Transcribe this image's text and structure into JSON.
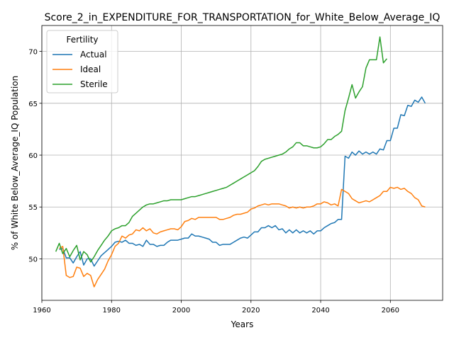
{
  "chart_data": {
    "type": "line",
    "title": "Score_2_in_EXPENDITURE_FOR_TRANSPORTATION_for_White_Below_Average_IQ",
    "xlabel": "Years",
    "ylabel": "% of White Below_Average_IQ Population",
    "xlim": [
      1960,
      2075
    ],
    "ylim": [
      46,
      72.5
    ],
    "xticks": [
      1960,
      1980,
      2000,
      2020,
      2040,
      2060
    ],
    "yticks": [
      50,
      55,
      60,
      65,
      70
    ],
    "grid": true,
    "legend": {
      "title": "Fertility",
      "placement": "top-left"
    },
    "series": [
      {
        "name": "Actual",
        "color": "#1f77b4",
        "x": [
          1965,
          1966,
          1967,
          1968,
          1969,
          1970,
          1971,
          1972,
          1973,
          1974,
          1975,
          1976,
          1977,
          1978,
          1979,
          1980,
          1981,
          1982,
          1983,
          1984,
          1985,
          1986,
          1987,
          1988,
          1989,
          1990,
          1991,
          1992,
          1993,
          1994,
          1995,
          1996,
          1997,
          1998,
          1999,
          2000,
          2001,
          2002,
          2003,
          2004,
          2005,
          2006,
          2007,
          2008,
          2009,
          2010,
          2011,
          2012,
          2013,
          2014,
          2015,
          2016,
          2017,
          2018,
          2019,
          2020,
          2021,
          2022,
          2023,
          2024,
          2025,
          2026,
          2027,
          2028,
          2029,
          2030,
          2031,
          2032,
          2033,
          2034,
          2035,
          2036,
          2037,
          2038,
          2039,
          2040,
          2041,
          2042,
          2043,
          2044,
          2045,
          2046,
          2047,
          2048,
          2049,
          2050,
          2051,
          2052,
          2053,
          2054,
          2055,
          2056,
          2057,
          2058,
          2059,
          2060,
          2061,
          2062,
          2063,
          2064,
          2065,
          2066,
          2067,
          2068,
          2069,
          2070
        ],
        "values": [
          50.9,
          51.0,
          50.1,
          50.1,
          49.6,
          50.2,
          50.7,
          49.4,
          50.0,
          50.0,
          49.3,
          49.8,
          50.3,
          50.6,
          50.9,
          51.2,
          51.6,
          51.7,
          51.6,
          51.8,
          51.5,
          51.5,
          51.3,
          51.4,
          51.2,
          51.8,
          51.4,
          51.4,
          51.2,
          51.3,
          51.3,
          51.6,
          51.8,
          51.8,
          51.8,
          51.9,
          52.0,
          52.0,
          52.4,
          52.2,
          52.2,
          52.1,
          52.0,
          51.9,
          51.6,
          51.6,
          51.3,
          51.4,
          51.4,
          51.4,
          51.6,
          51.8,
          52.0,
          52.1,
          52.0,
          52.3,
          52.6,
          52.6,
          53.0,
          53.0,
          53.2,
          53.0,
          53.2,
          52.8,
          52.9,
          52.5,
          52.8,
          52.5,
          52.8,
          52.5,
          52.7,
          52.5,
          52.7,
          52.4,
          52.7,
          52.7,
          53.0,
          53.2,
          53.4,
          53.5,
          53.8,
          53.8,
          59.9,
          59.7,
          60.3,
          60.0,
          60.4,
          60.1,
          60.3,
          60.1,
          60.3,
          60.1,
          60.6,
          60.5,
          61.4,
          61.4,
          62.6,
          62.6,
          63.9,
          63.8,
          64.8,
          64.7,
          65.3,
          65.1,
          65.6,
          65.0
        ]
      },
      {
        "name": "Ideal",
        "color": "#ff7f0e",
        "x": [
          1965,
          1966,
          1967,
          1968,
          1969,
          1970,
          1971,
          1972,
          1973,
          1974,
          1975,
          1976,
          1977,
          1978,
          1979,
          1980,
          1981,
          1982,
          1983,
          1984,
          1985,
          1986,
          1987,
          1988,
          1989,
          1990,
          1991,
          1992,
          1993,
          1994,
          1995,
          1996,
          1997,
          1998,
          1999,
          2000,
          2001,
          2002,
          2003,
          2004,
          2005,
          2006,
          2007,
          2008,
          2009,
          2010,
          2011,
          2012,
          2013,
          2014,
          2015,
          2016,
          2017,
          2018,
          2019,
          2020,
          2021,
          2022,
          2023,
          2024,
          2025,
          2026,
          2027,
          2028,
          2029,
          2030,
          2031,
          2032,
          2033,
          2034,
          2035,
          2036,
          2037,
          2038,
          2039,
          2040,
          2041,
          2042,
          2043,
          2044,
          2045,
          2046,
          2047,
          2048,
          2049,
          2050,
          2051,
          2052,
          2053,
          2054,
          2055,
          2056,
          2057,
          2058,
          2059,
          2060,
          2061,
          2062,
          2063,
          2064,
          2065,
          2066,
          2067,
          2068,
          2069,
          2070
        ],
        "values": [
          51.0,
          51.2,
          48.4,
          48.2,
          48.3,
          49.2,
          49.1,
          48.3,
          48.6,
          48.4,
          47.3,
          48.0,
          48.5,
          49.0,
          49.8,
          50.4,
          51.2,
          51.5,
          52.2,
          52.0,
          52.3,
          52.4,
          52.8,
          52.7,
          53.0,
          52.7,
          52.9,
          52.5,
          52.4,
          52.6,
          52.7,
          52.8,
          52.9,
          52.9,
          52.8,
          53.1,
          53.6,
          53.7,
          53.9,
          53.8,
          54.0,
          54.0,
          54.0,
          54.0,
          54.0,
          54.0,
          53.8,
          53.8,
          53.9,
          54.0,
          54.2,
          54.3,
          54.3,
          54.4,
          54.5,
          54.8,
          54.9,
          55.1,
          55.2,
          55.3,
          55.2,
          55.3,
          55.3,
          55.3,
          55.2,
          55.1,
          54.9,
          55.0,
          54.9,
          55.0,
          54.9,
          55.0,
          55.0,
          55.1,
          55.3,
          55.3,
          55.5,
          55.4,
          55.2,
          55.3,
          55.1,
          56.7,
          56.5,
          56.3,
          55.8,
          55.6,
          55.4,
          55.5,
          55.6,
          55.5,
          55.7,
          55.9,
          56.1,
          56.5,
          56.5,
          56.9,
          56.8,
          56.9,
          56.7,
          56.8,
          56.5,
          56.3,
          55.9,
          55.7,
          55.1,
          55.0
        ]
      },
      {
        "name": "Sterile",
        "color": "#2ca02c",
        "x": [
          1964,
          1965,
          1966,
          1967,
          1968,
          1969,
          1970,
          1971,
          1972,
          1973,
          1974,
          1975,
          1976,
          1977,
          1978,
          1979,
          1980,
          1981,
          1982,
          1983,
          1984,
          1985,
          1986,
          1987,
          1988,
          1989,
          1990,
          1991,
          1992,
          1993,
          1994,
          1995,
          1996,
          1997,
          1998,
          1999,
          2000,
          2001,
          2002,
          2003,
          2004,
          2005,
          2006,
          2007,
          2008,
          2009,
          2010,
          2011,
          2012,
          2013,
          2014,
          2015,
          2016,
          2017,
          2018,
          2019,
          2020,
          2021,
          2022,
          2023,
          2024,
          2025,
          2026,
          2027,
          2028,
          2029,
          2030,
          2031,
          2032,
          2033,
          2034,
          2035,
          2036,
          2037,
          2038,
          2039,
          2040,
          2041,
          2042,
          2043,
          2044,
          2045,
          2046,
          2047,
          2048,
          2049,
          2050,
          2051,
          2052,
          2053,
          2054,
          2055,
          2056,
          2057,
          2058,
          2059
        ],
        "values": [
          50.7,
          51.5,
          50.5,
          51.0,
          50.2,
          50.8,
          51.3,
          49.9,
          50.7,
          50.4,
          49.7,
          50.2,
          50.8,
          51.3,
          51.8,
          52.2,
          52.7,
          52.9,
          53.0,
          53.2,
          53.2,
          53.5,
          54.1,
          54.4,
          54.7,
          55.0,
          55.2,
          55.3,
          55.3,
          55.4,
          55.5,
          55.6,
          55.6,
          55.7,
          55.7,
          55.7,
          55.7,
          55.8,
          55.9,
          56.0,
          56.0,
          56.1,
          56.2,
          56.3,
          56.4,
          56.5,
          56.6,
          56.7,
          56.8,
          56.9,
          57.1,
          57.3,
          57.5,
          57.7,
          57.9,
          58.1,
          58.3,
          58.5,
          58.9,
          59.4,
          59.6,
          59.7,
          59.8,
          59.9,
          60.0,
          60.1,
          60.3,
          60.6,
          60.8,
          61.2,
          61.2,
          60.9,
          60.9,
          60.8,
          60.7,
          60.7,
          60.8,
          61.1,
          61.5,
          61.5,
          61.8,
          62.0,
          62.3,
          64.3,
          65.5,
          66.8,
          65.5,
          66.1,
          66.6,
          68.4,
          69.2,
          69.2,
          69.2,
          71.4,
          68.9,
          69.3
        ]
      }
    ]
  }
}
